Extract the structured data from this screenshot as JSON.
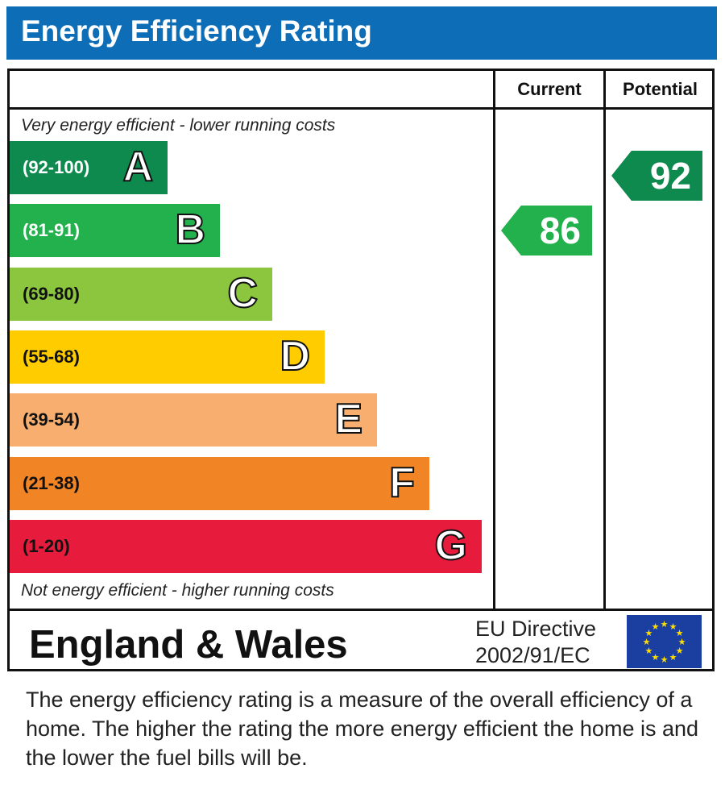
{
  "header": {
    "title": "Energy Efficiency Rating"
  },
  "columns": {
    "current": "Current",
    "potential": "Potential"
  },
  "notes": {
    "top": "Very energy efficient - lower running costs",
    "bottom": "Not energy efficient - higher running costs"
  },
  "chart_data": {
    "type": "bar",
    "title": "Energy Efficiency Rating",
    "categories": [
      "A",
      "B",
      "C",
      "D",
      "E",
      "F",
      "G"
    ],
    "ranges": [
      "(92-100)",
      "(81-91)",
      "(69-80)",
      "(55-68)",
      "(39-54)",
      "(21-38)",
      "(1-20)"
    ],
    "colors": [
      "#0f8a4f",
      "#22b14c",
      "#8cc63f",
      "#ffcc00",
      "#f7ae6e",
      "#f18424",
      "#e71c3c"
    ],
    "range_text_colors": [
      "#ffffff",
      "#ffffff",
      "#111111",
      "#111111",
      "#111111",
      "#111111",
      "#111111"
    ],
    "ratings": [
      {
        "name": "Current",
        "value": 86,
        "band": "B",
        "color": "#22b14c"
      },
      {
        "name": "Potential",
        "value": 92,
        "band": "A",
        "color": "#0f8a4f"
      }
    ]
  },
  "footer": {
    "region": "England & Wales",
    "directive_line1": "EU Directive",
    "directive_line2": "2002/91/EC",
    "flag_colors": {
      "background": "#1b3fa0",
      "stars": "#ffdd00"
    }
  },
  "description": "The energy efficiency rating is a measure of the overall efficiency of a home.  The higher the rating the more energy efficient the home is and the lower the fuel bills will be."
}
